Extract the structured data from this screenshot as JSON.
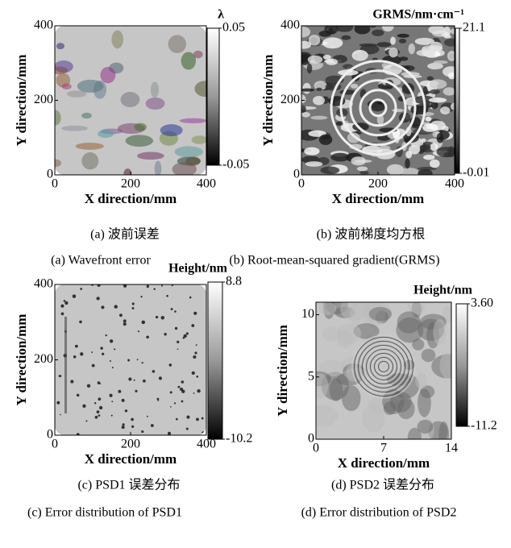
{
  "chart_data": [
    {
      "type": "heatmap",
      "xlabel": "X direction/mm",
      "ylabel": "Y direction/mm",
      "xlim": [
        0,
        400
      ],
      "xticks": [
        0,
        200,
        400
      ],
      "ylim": [
        0,
        400
      ],
      "yticks": [
        0,
        200,
        400
      ],
      "colorbar_title": "λ",
      "zlim": [
        -0.05,
        0.05
      ],
      "zticks": [
        -0.05,
        0.05
      ],
      "caption_cn": "(a) 波前误差",
      "caption_en": "(a) Wavefront error"
    },
    {
      "type": "heatmap",
      "xlabel": "X direction/mm",
      "ylabel": "Y direction/mm",
      "xlim": [
        0,
        400
      ],
      "xticks": [
        0,
        200,
        400
      ],
      "ylim": [
        0,
        400
      ],
      "yticks": [
        0,
        200,
        400
      ],
      "colorbar_title": "GRMS/nm·cm⁻¹",
      "zlim": [
        -0.01,
        21.1
      ],
      "zticks": [
        -0.01,
        21.1
      ],
      "caption_cn": "(b) 波前梯度均方根",
      "caption_en": "(b) Root-mean-squared gradient(GRMS)"
    },
    {
      "type": "heatmap",
      "xlabel": "X direction/mm",
      "ylabel": "Y direction/mm",
      "xlim": [
        0,
        400
      ],
      "xticks": [
        0,
        200,
        400
      ],
      "ylim": [
        0,
        400
      ],
      "yticks": [
        0,
        200,
        400
      ],
      "colorbar_title": "Height/nm",
      "zlim": [
        -10.2,
        8.8
      ],
      "zticks": [
        -10.2,
        8.8
      ],
      "caption_cn": "(c) PSD1 误差分布",
      "caption_en": "(c) Error distribution of PSD1"
    },
    {
      "type": "heatmap",
      "xlabel": "X direction/mm",
      "ylabel": "Y direction/mm",
      "xlim": [
        0,
        14
      ],
      "xticks": [
        0,
        7,
        14
      ],
      "ylim": [
        0,
        11
      ],
      "yticks": [
        0,
        5,
        10
      ],
      "colorbar_title": "Height/nm",
      "zlim": [
        -11.2,
        3.6
      ],
      "zticks": [
        -11.2,
        {
          "value": 3.6,
          "label": "3.60"
        }
      ],
      "caption_cn": "(d) PSD2 误差分布",
      "caption_en": "(d) Error distribution of PSD2"
    }
  ]
}
